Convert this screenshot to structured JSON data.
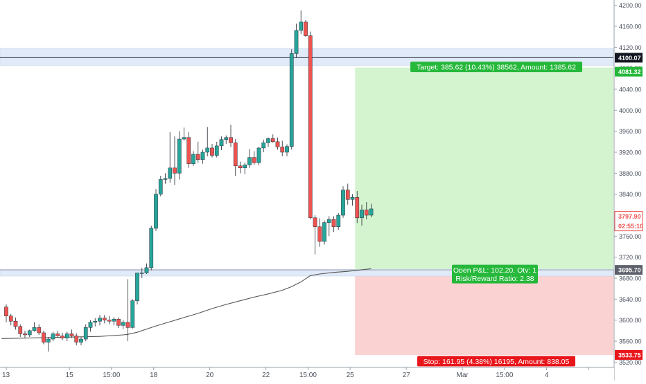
{
  "chart_data": {
    "type": "candlestick",
    "y_axis": {
      "min": 3510,
      "max": 4210,
      "ticks": [
        3520,
        3560,
        3600,
        3640,
        3680,
        3720,
        3760,
        3800,
        3840,
        3880,
        3920,
        3960,
        4000,
        4040,
        4080,
        4120,
        4160,
        4200
      ],
      "tick_labels": [
        "3520.00",
        "3560.00",
        "3600.00",
        "3640.00",
        "3680.00",
        "3720.00",
        "3760.00",
        "3800.00",
        "3840.00",
        "3880.00",
        "3920.00",
        "3960.00",
        "4000.00",
        "4040.00",
        "4080.00",
        "4120.00",
        "4160.00",
        "4200.00"
      ]
    },
    "x_axis": {
      "min": 0,
      "max": 126,
      "ticks": [
        {
          "x": 0,
          "label": "13"
        },
        {
          "x": 13.5,
          "label": "15"
        },
        {
          "x": 22.5,
          "label": "15:00"
        },
        {
          "x": 31.5,
          "label": "18"
        },
        {
          "x": 43.5,
          "label": "20"
        },
        {
          "x": 55.5,
          "label": "22"
        },
        {
          "x": 64.5,
          "label": "15:00"
        },
        {
          "x": 73.5,
          "label": "25"
        },
        {
          "x": 85.5,
          "label": "27"
        },
        {
          "x": 97.5,
          "label": "Mar"
        },
        {
          "x": 106.5,
          "label": "15:00"
        },
        {
          "x": 115.5,
          "label": "4"
        },
        {
          "x": 124.5,
          "label": ""
        }
      ]
    },
    "candles": [
      [
        3625,
        3630,
        3596,
        3608
      ],
      [
        3608,
        3612,
        3590,
        3598
      ],
      [
        3598,
        3605,
        3582,
        3588
      ],
      [
        3588,
        3592,
        3568,
        3574
      ],
      [
        3574,
        3580,
        3566,
        3572
      ],
      [
        3572,
        3582,
        3568,
        3580
      ],
      [
        3580,
        3596,
        3578,
        3586
      ],
      [
        3586,
        3592,
        3572,
        3576
      ],
      [
        3576,
        3580,
        3554,
        3558
      ],
      [
        3558,
        3568,
        3540,
        3564
      ],
      [
        3564,
        3578,
        3560,
        3574
      ],
      [
        3574,
        3580,
        3566,
        3570
      ],
      [
        3570,
        3576,
        3562,
        3566
      ],
      [
        3566,
        3578,
        3560,
        3574
      ],
      [
        3574,
        3582,
        3566,
        3570
      ],
      [
        3570,
        3575,
        3552,
        3558
      ],
      [
        3558,
        3568,
        3552,
        3564
      ],
      [
        3564,
        3592,
        3560,
        3586
      ],
      [
        3586,
        3600,
        3578,
        3596
      ],
      [
        3596,
        3604,
        3588,
        3598
      ],
      [
        3598,
        3610,
        3590,
        3604
      ],
      [
        3604,
        3610,
        3594,
        3600
      ],
      [
        3600,
        3608,
        3592,
        3598
      ],
      [
        3598,
        3606,
        3590,
        3602
      ],
      [
        3602,
        3605,
        3585,
        3590
      ],
      [
        3590,
        3600,
        3583,
        3596
      ],
      [
        3596,
        3678,
        3560,
        3586
      ],
      [
        3586,
        3640,
        3584,
        3637
      ],
      [
        3637,
        3690,
        3630,
        3690
      ],
      [
        3690,
        3700,
        3680,
        3690
      ],
      [
        3690,
        3708,
        3688,
        3700
      ],
      [
        3700,
        3780,
        3695,
        3775
      ],
      [
        3775,
        3850,
        3770,
        3840
      ],
      [
        3840,
        3875,
        3836,
        3868
      ],
      [
        3868,
        3880,
        3860,
        3870
      ],
      [
        3870,
        3958,
        3862,
        3890
      ],
      [
        3890,
        3950,
        3858,
        3880
      ],
      [
        3880,
        3960,
        3868,
        3945
      ],
      [
        3945,
        3967,
        3942,
        3948
      ],
      [
        3948,
        3958,
        3890,
        3898
      ],
      [
        3898,
        3922,
        3894,
        3916
      ],
      [
        3916,
        3940,
        3900,
        3906
      ],
      [
        3906,
        3925,
        3898,
        3920
      ],
      [
        3920,
        3968,
        3912,
        3928
      ],
      [
        3928,
        3936,
        3910,
        3914
      ],
      [
        3914,
        3940,
        3910,
        3932
      ],
      [
        3932,
        3950,
        3924,
        3944
      ],
      [
        3944,
        3952,
        3936,
        3948
      ],
      [
        3948,
        3972,
        3930,
        3938
      ],
      [
        3938,
        3945,
        3875,
        3894
      ],
      [
        3894,
        3902,
        3880,
        3890
      ],
      [
        3890,
        3900,
        3878,
        3896
      ],
      [
        3896,
        3926,
        3890,
        3910
      ],
      [
        3910,
        3922,
        3896,
        3900
      ],
      [
        3900,
        3930,
        3895,
        3928
      ],
      [
        3928,
        3944,
        3920,
        3938
      ],
      [
        3938,
        3948,
        3930,
        3946
      ],
      [
        3946,
        3954,
        3938,
        3940
      ],
      [
        3940,
        3948,
        3925,
        3930
      ],
      [
        3930,
        3942,
        3912,
        3920
      ],
      [
        3920,
        3935,
        3912,
        3931
      ],
      [
        3931,
        4116,
        3925,
        4108
      ],
      [
        4108,
        4165,
        4100,
        4152
      ],
      [
        4152,
        4190,
        4145,
        4168
      ],
      [
        4168,
        4172,
        4140,
        4142
      ],
      [
        4142,
        4150,
        3792,
        3795
      ],
      [
        3795,
        3800,
        3725,
        3778
      ],
      [
        3778,
        3794,
        3740,
        3750
      ],
      [
        3750,
        3790,
        3744,
        3786
      ],
      [
        3786,
        3798,
        3760,
        3792
      ],
      [
        3792,
        3798,
        3768,
        3778
      ],
      [
        3778,
        3804,
        3772,
        3800
      ],
      [
        3800,
        3855,
        3795,
        3848
      ],
      [
        3848,
        3860,
        3820,
        3830
      ],
      [
        3830,
        3840,
        3818,
        3834
      ],
      [
        3834,
        3846,
        3785,
        3795
      ],
      [
        3795,
        3820,
        3780,
        3810
      ],
      [
        3810,
        3825,
        3792,
        3800
      ],
      [
        3800,
        3822,
        3796,
        3812
      ]
    ],
    "ma_line": [
      [
        -1,
        3565
      ],
      [
        10,
        3567
      ],
      [
        20,
        3569
      ],
      [
        25,
        3572
      ],
      [
        26,
        3573
      ],
      [
        28,
        3577
      ],
      [
        30,
        3583
      ],
      [
        32,
        3589
      ],
      [
        35,
        3597
      ],
      [
        38,
        3605
      ],
      [
        41,
        3613
      ],
      [
        44,
        3622
      ],
      [
        47,
        3630
      ],
      [
        50,
        3637
      ],
      [
        53,
        3644
      ],
      [
        56,
        3650
      ],
      [
        59,
        3657
      ],
      [
        61,
        3664
      ],
      [
        63,
        3673
      ],
      [
        65,
        3685
      ],
      [
        67,
        3688
      ],
      [
        70,
        3691
      ],
      [
        73,
        3693
      ],
      [
        76,
        3696
      ],
      [
        78,
        3698
      ]
    ],
    "levels": {
      "target_line": 4100.07,
      "target_zone_top": 4081.32,
      "entry": 3695.7,
      "stop": 3533.75,
      "last_price": 3797.9
    },
    "bands": [
      {
        "from": 4085,
        "to": 4118
      },
      {
        "from": 3684,
        "to": 3697
      }
    ],
    "position": {
      "x_start": 75,
      "x_end": 126
    },
    "labels": {
      "target_line": "4100.07",
      "target_zone": "4081.32",
      "entry": "3695.70",
      "stop": "3533.75",
      "last_price": "3797.90",
      "countdown": "02:55:10",
      "target_text": "Target: 385.62 (10.43%) 38562, Amount: 1385.62",
      "open_pl_text": "Open P&L: 102.20, Qty: 1",
      "rr_text": "Risk/Reward Ratio: 2.38",
      "stop_text": "Stop: 161.95 (4.38%) 16195, Amount: 838.05"
    },
    "colors": {
      "up": "#26a69a",
      "down": "#ef5350",
      "target_zone": "#d4f4d0",
      "stop_zone": "#fbd2d2",
      "band": "#e0eaf8",
      "target_badge": "#25b83a",
      "stop_badge": "#e8151b",
      "entry_badge": "#5d606b",
      "last_price_badge": "#ef5350",
      "ma_line": "#555555"
    }
  }
}
